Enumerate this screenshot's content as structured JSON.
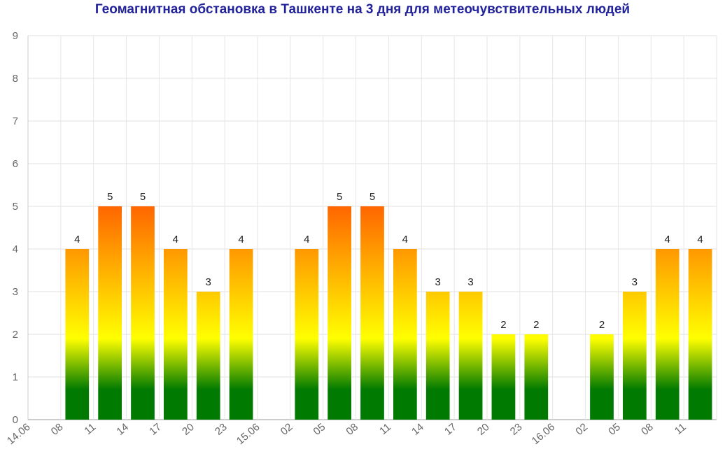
{
  "title": "Геомагнитная обстановка в Ташкенте на 3 дня для метеочувствительных людей",
  "chart_data": {
    "type": "bar",
    "title": "Геомагнитная обстановка в Ташкенте на 3 дня для метеочувствительных людей",
    "xlabel": "",
    "ylabel": "",
    "ylim": [
      0,
      9
    ],
    "grid": true,
    "legend": "none",
    "gradient_colors": {
      "top": "#ff6600",
      "middle": "#ffff00",
      "bottom": "#007a00"
    },
    "categories": [
      "14.06",
      "08",
      "11",
      "14",
      "17",
      "20",
      "23",
      "15.06",
      "02",
      "05",
      "08",
      "11",
      "14",
      "17",
      "20",
      "23",
      "16.06",
      "02",
      "05",
      "08",
      "11"
    ],
    "values": [
      null,
      4,
      5,
      5,
      4,
      3,
      4,
      null,
      4,
      5,
      5,
      4,
      3,
      3,
      2,
      2,
      null,
      2,
      3,
      4,
      4
    ],
    "yticks": [
      "0",
      "1",
      "2",
      "3",
      "4",
      "5",
      "6",
      "7",
      "8",
      "9"
    ]
  }
}
